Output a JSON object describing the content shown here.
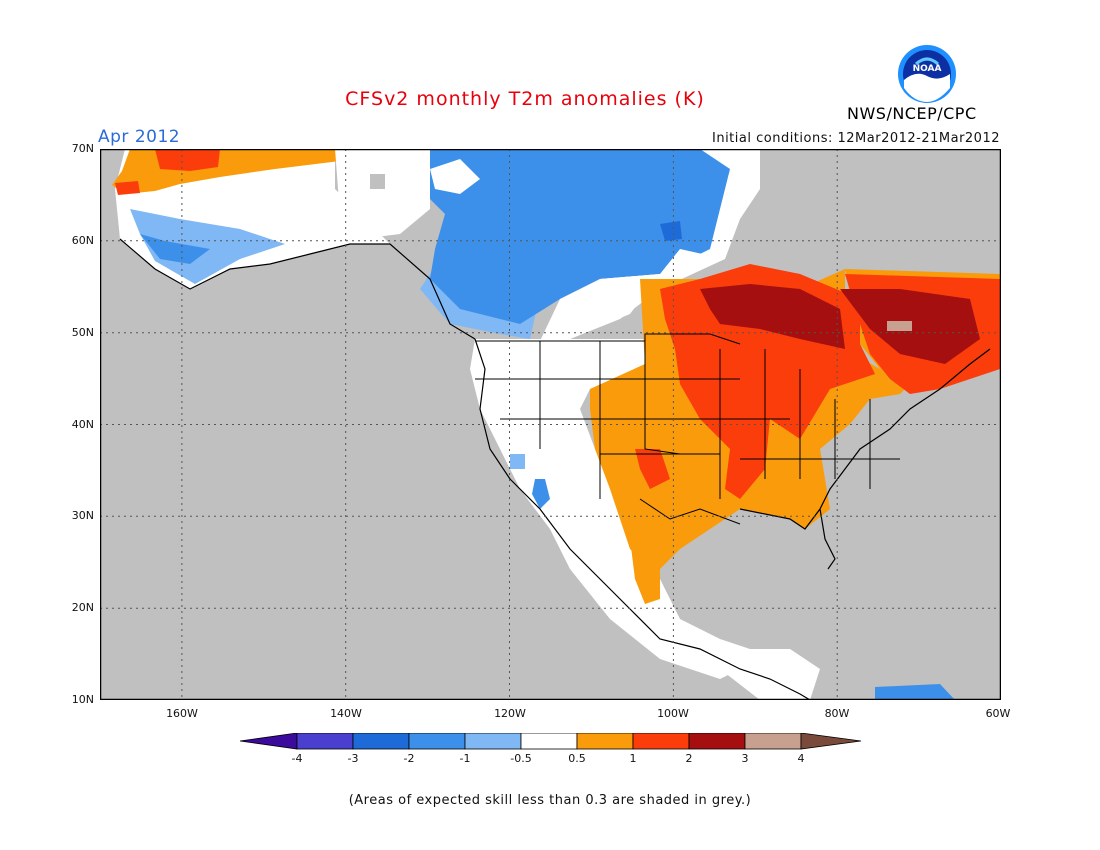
{
  "title": "CFSv2 monthly T2m anomalies (K)",
  "valid_month": "Apr 2012",
  "initial_conditions": "Initial conditions: 12Mar2012-21Mar2012",
  "agency": "NWS/NCEP/CPC",
  "logo_text": "NOAA",
  "colors": {
    "grey_low_skill": "#c0c0c0",
    "neg4": "#3d0a9e",
    "neg3": "#4b3fd0",
    "neg2": "#1f6ad9",
    "neg1": "#3d90ea",
    "neg05": "#7fb8f4",
    "neutral": "#ffffff",
    "pos05": "#f99b0a",
    "pos1": "#fa3d0a",
    "pos2": "#a50f0f",
    "pos3": "#c7a090",
    "pos4": "#7a4b3a"
  },
  "map": {
    "lat_labels": [
      "70N",
      "60N",
      "50N",
      "40N",
      "30N",
      "20N",
      "10N"
    ],
    "lon_labels": [
      "160W",
      "140W",
      "120W",
      "100W",
      "80W",
      "60W"
    ],
    "lat_range": [
      10,
      70
    ],
    "lon_range": [
      -170,
      -60
    ],
    "grid": "dotted"
  },
  "colorbar": {
    "labels": [
      "-4",
      "-3",
      "-2",
      "-1",
      "-0.5",
      "0.5",
      "1",
      "2",
      "3",
      "4"
    ]
  },
  "footnote": "(Areas of expected skill less than 0.3 are shaded in grey.)"
}
